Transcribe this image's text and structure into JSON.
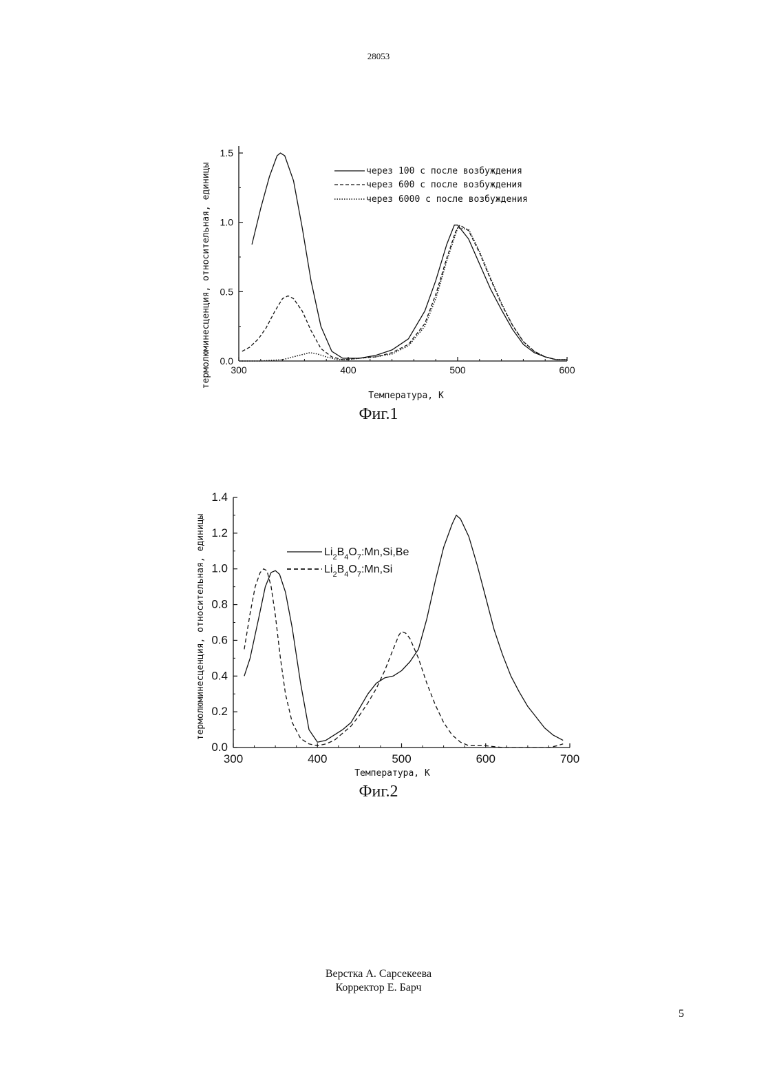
{
  "page": {
    "doc_number": "28053",
    "page_number": "5",
    "footer": {
      "layout": "Верстка А. Сарсекеева",
      "corrector": "Корректор Е. Барч"
    }
  },
  "chart_data": [
    {
      "type": "line",
      "caption": "Фиг.1",
      "title": "",
      "xlabel": "Температура, К",
      "ylabel": "термолюминесценция, относительная, единицы",
      "xlim": [
        300,
        600
      ],
      "ylim": [
        0.0,
        1.55
      ],
      "xticks": [
        300,
        400,
        500,
        600
      ],
      "yticks": [
        0.0,
        0.5,
        1.0,
        1.5
      ],
      "ytick_labels": [
        "0.0",
        "0.5",
        "1.0",
        "1.5"
      ],
      "grid": false,
      "legend": "top-right",
      "series": [
        {
          "name": "через 100 с  после возбуждения",
          "style": "solid",
          "x": [
            312,
            320,
            328,
            335,
            338,
            342,
            350,
            358,
            366,
            375,
            385,
            395,
            410,
            425,
            440,
            455,
            470,
            480,
            490,
            497,
            500,
            510,
            520,
            530,
            540,
            550,
            560,
            570,
            580,
            590,
            600
          ],
          "y": [
            0.84,
            1.1,
            1.33,
            1.48,
            1.5,
            1.48,
            1.3,
            0.96,
            0.58,
            0.25,
            0.07,
            0.02,
            0.02,
            0.04,
            0.08,
            0.16,
            0.36,
            0.58,
            0.84,
            0.98,
            0.98,
            0.88,
            0.7,
            0.52,
            0.37,
            0.23,
            0.12,
            0.06,
            0.03,
            0.01,
            0.01
          ]
        },
        {
          "name": "через 600 с  после возбуждения",
          "style": "dashed",
          "x": [
            303,
            310,
            318,
            325,
            333,
            340,
            345,
            350,
            358,
            366,
            375,
            385,
            395,
            410,
            425,
            440,
            455,
            470,
            480,
            490,
            498,
            502,
            510,
            520,
            530,
            540,
            550,
            560,
            570,
            580,
            590,
            600
          ],
          "y": [
            0.07,
            0.1,
            0.16,
            0.24,
            0.36,
            0.45,
            0.47,
            0.45,
            0.36,
            0.22,
            0.09,
            0.03,
            0.01,
            0.02,
            0.03,
            0.06,
            0.12,
            0.27,
            0.48,
            0.74,
            0.93,
            0.98,
            0.94,
            0.78,
            0.59,
            0.41,
            0.26,
            0.14,
            0.07,
            0.03,
            0.01,
            0.01
          ]
        },
        {
          "name": "через 6000 с  после возбуждения",
          "style": "dotted",
          "x": [
            303,
            320,
            340,
            355,
            365,
            372,
            380,
            390,
            400,
            410,
            425,
            440,
            455,
            470,
            480,
            490,
            500,
            510,
            520,
            530,
            540,
            550,
            560,
            570,
            580,
            590,
            600
          ],
          "y": [
            0.0,
            0.0,
            0.01,
            0.04,
            0.06,
            0.05,
            0.03,
            0.01,
            0.01,
            0.02,
            0.03,
            0.05,
            0.11,
            0.25,
            0.45,
            0.72,
            0.96,
            0.95,
            0.79,
            0.6,
            0.42,
            0.26,
            0.14,
            0.07,
            0.03,
            0.01,
            0.01
          ]
        }
      ]
    },
    {
      "type": "line",
      "caption": "Фиг.2",
      "title": "",
      "xlabel": "Температура, К",
      "ylabel": "термолюминесценция, относительная, единицы",
      "xlim": [
        300,
        700
      ],
      "ylim": [
        0.0,
        1.4
      ],
      "xticks": [
        300,
        400,
        500,
        600,
        700
      ],
      "yticks": [
        0.0,
        0.2,
        0.4,
        0.6,
        0.8,
        1.0,
        1.2,
        1.4
      ],
      "ytick_labels": [
        "0.0",
        "0.2",
        "0.4",
        "0.6",
        "0.8",
        "1.0",
        "1.2",
        "1.4"
      ],
      "grid": false,
      "legend": "top-center",
      "series": [
        {
          "name": "Li2B4O7:Mn,Si,Be",
          "style": "solid",
          "x": [
            313,
            320,
            330,
            338,
            345,
            350,
            355,
            362,
            370,
            380,
            390,
            400,
            410,
            420,
            430,
            440,
            450,
            460,
            470,
            480,
            490,
            500,
            510,
            520,
            530,
            540,
            550,
            560,
            565,
            570,
            580,
            590,
            600,
            610,
            620,
            630,
            640,
            650,
            660,
            670,
            680,
            692
          ],
          "y": [
            0.4,
            0.5,
            0.72,
            0.9,
            0.98,
            0.99,
            0.97,
            0.87,
            0.67,
            0.36,
            0.1,
            0.03,
            0.04,
            0.07,
            0.1,
            0.14,
            0.22,
            0.3,
            0.36,
            0.39,
            0.4,
            0.43,
            0.48,
            0.55,
            0.72,
            0.93,
            1.12,
            1.25,
            1.3,
            1.28,
            1.18,
            1.02,
            0.84,
            0.66,
            0.52,
            0.4,
            0.31,
            0.23,
            0.17,
            0.11,
            0.07,
            0.04
          ]
        },
        {
          "name": "Li2B4O7:Mn,Si",
          "style": "dashed",
          "x": [
            313,
            320,
            326,
            332,
            336,
            340,
            345,
            350,
            356,
            362,
            370,
            380,
            390,
            400,
            410,
            420,
            430,
            440,
            450,
            460,
            470,
            480,
            490,
            497,
            500,
            505,
            510,
            520,
            530,
            540,
            550,
            560,
            570,
            580,
            590,
            600,
            620,
            640,
            660,
            675,
            685,
            692
          ],
          "y": [
            0.55,
            0.75,
            0.9,
            0.98,
            1.0,
            0.99,
            0.9,
            0.74,
            0.5,
            0.3,
            0.14,
            0.05,
            0.02,
            0.01,
            0.02,
            0.04,
            0.08,
            0.12,
            0.18,
            0.25,
            0.33,
            0.43,
            0.55,
            0.63,
            0.65,
            0.64,
            0.61,
            0.5,
            0.36,
            0.24,
            0.14,
            0.07,
            0.03,
            0.01,
            0.01,
            0.01,
            0.0,
            0.0,
            0.0,
            0.0,
            0.01,
            0.02
          ]
        }
      ]
    }
  ]
}
